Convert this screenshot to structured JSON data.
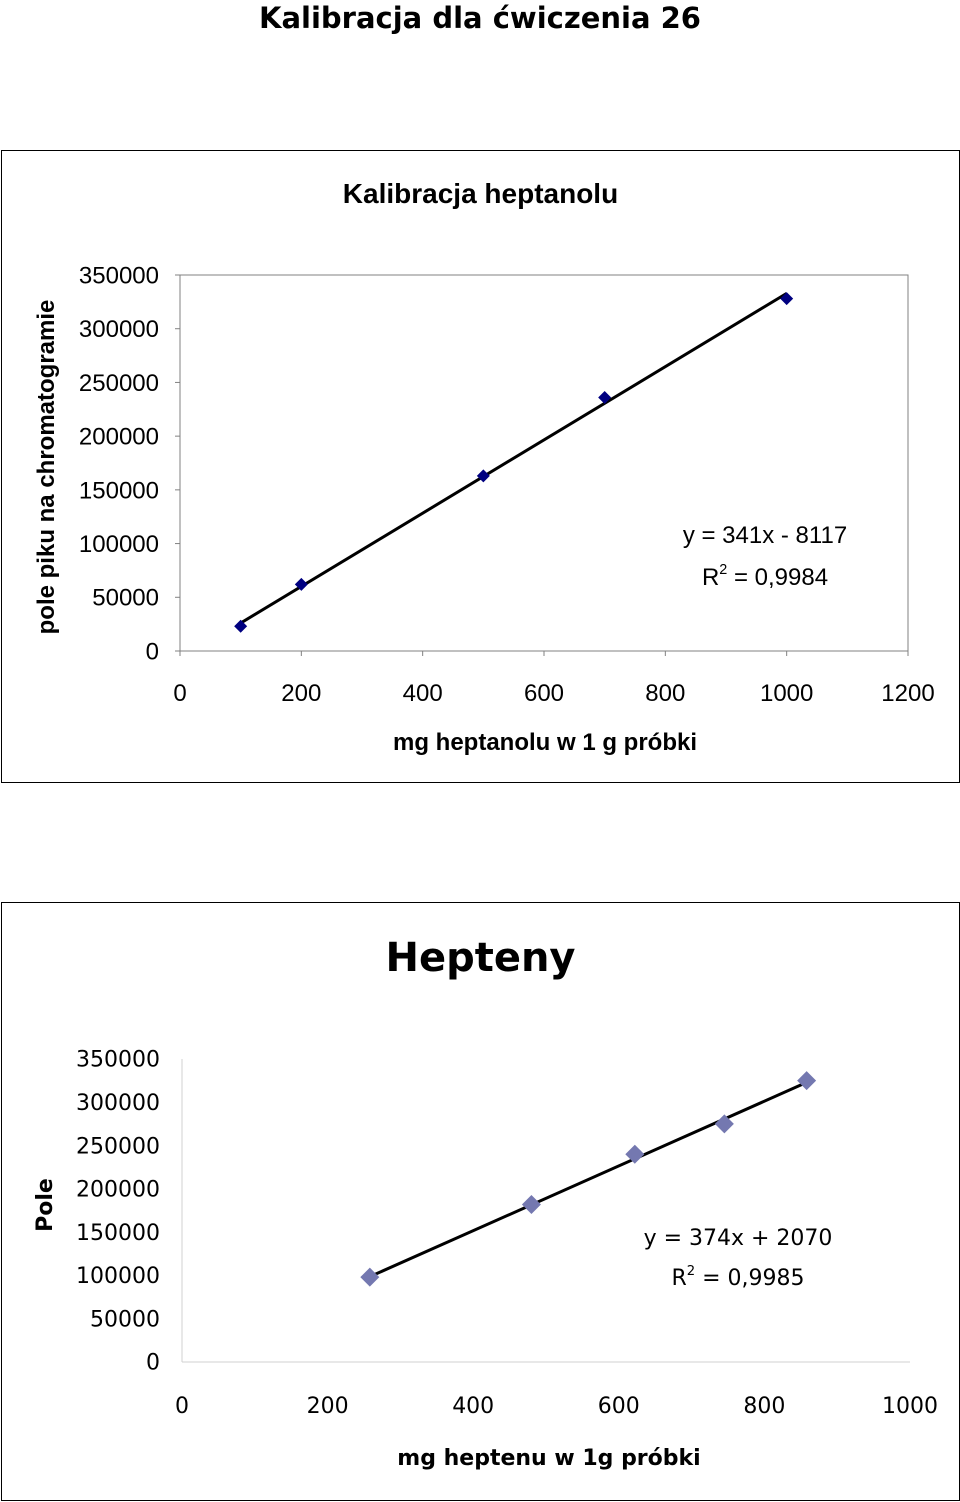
{
  "page": {
    "title": "Kalibracja dla ćwiczenia 26"
  },
  "chart_data": [
    {
      "type": "scatter",
      "title": "Kalibracja heptanolu",
      "xlabel": "mg heptanolu w 1 g próbki",
      "ylabel": "pole piku na chromatogramie",
      "xlim": [
        0,
        1200
      ],
      "ylim": [
        0,
        350000
      ],
      "xticks": [
        "0",
        "200",
        "400",
        "600",
        "800",
        "1000",
        "1200"
      ],
      "yticks": [
        "0",
        "50000",
        "100000",
        "150000",
        "200000",
        "250000",
        "300000",
        "350000"
      ],
      "points": [
        {
          "x": 100,
          "y": 23000
        },
        {
          "x": 200,
          "y": 62000
        },
        {
          "x": 500,
          "y": 163000
        },
        {
          "x": 700,
          "y": 236000
        },
        {
          "x": 1000,
          "y": 328000
        }
      ],
      "trendline": {
        "slope": 341,
        "intercept": -8117,
        "x_range": [
          100,
          1000
        ],
        "equation": "y = 341x - 8117",
        "r2_label": "R",
        "r2_sup": "2",
        "r2_value": " = 0,9984"
      },
      "marker_color": "#000080",
      "grid": false,
      "legend": "none"
    },
    {
      "type": "scatter",
      "title": "Hepteny",
      "xlabel": "mg heptenu w 1g próbki",
      "ylabel": "Pole",
      "xlim": [
        0,
        1000
      ],
      "ylim": [
        0,
        350000
      ],
      "xticks": [
        "0",
        "200",
        "400",
        "600",
        "800",
        "1000"
      ],
      "yticks": [
        "0",
        "50000",
        "100000",
        "150000",
        "200000",
        "250000",
        "300000",
        "350000"
      ],
      "points": [
        {
          "x": 258,
          "y": 98000
        },
        {
          "x": 480,
          "y": 182000
        },
        {
          "x": 622,
          "y": 240000
        },
        {
          "x": 745,
          "y": 275000
        },
        {
          "x": 858,
          "y": 325000
        }
      ],
      "trendline": {
        "slope": 374,
        "intercept": 2070,
        "x_range": [
          258,
          858
        ],
        "equation": "y = 374x + 2070",
        "r2_label": "R",
        "r2_sup": "2",
        "r2_value": " = 0,9985"
      },
      "marker_color": "#7478B0",
      "grid": false,
      "legend": "none"
    }
  ]
}
